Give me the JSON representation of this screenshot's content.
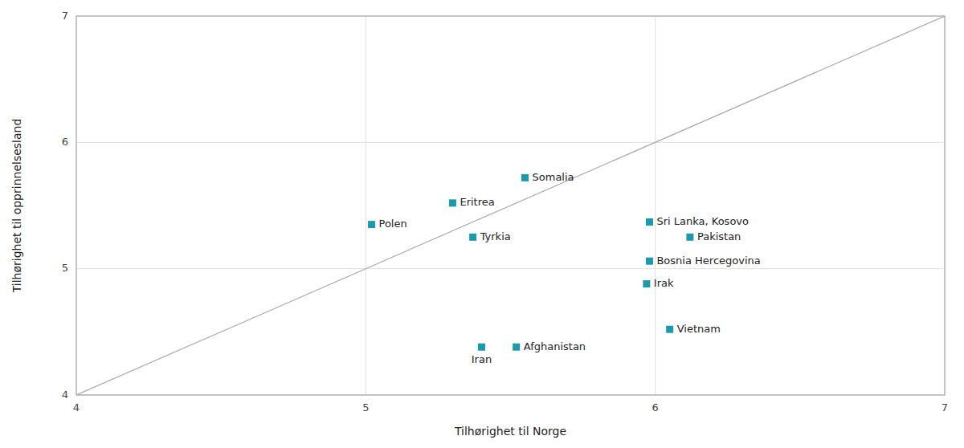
{
  "chart_data": {
    "type": "scatter",
    "x_label": "Tilhørighet til Norge",
    "y_label": "Tilhørighet til opprinnelsesland",
    "xlim": [
      4,
      7
    ],
    "ylim": [
      4,
      7
    ],
    "xticks": [
      4,
      5,
      6,
      7
    ],
    "yticks": [
      4,
      5,
      6,
      7
    ],
    "grid": true,
    "series": [
      {
        "type": "scatter",
        "color": "#1a9aac",
        "marker": "square",
        "x": [
          5.02,
          5.3,
          5.55,
          5.37,
          5.98,
          6.12,
          5.98,
          5.97,
          6.05,
          5.4,
          5.52
        ],
        "values": [
          5.35,
          5.52,
          5.72,
          5.25,
          5.37,
          5.25,
          5.06,
          4.88,
          4.52,
          4.38,
          4.38
        ],
        "labels": [
          "Polen",
          "Eritrea",
          "Somalia",
          "Tyrkia",
          "Sri Lanka, Kosovo",
          "Pakistan",
          "Bosnia Hercegovina",
          "Irak",
          "Vietnam",
          "Iran",
          "Afghanistan"
        ]
      },
      {
        "type": "line",
        "color": "#aaaaaa",
        "line_style": "solid",
        "x": [
          4,
          7
        ],
        "values": [
          4,
          7
        ]
      }
    ]
  }
}
